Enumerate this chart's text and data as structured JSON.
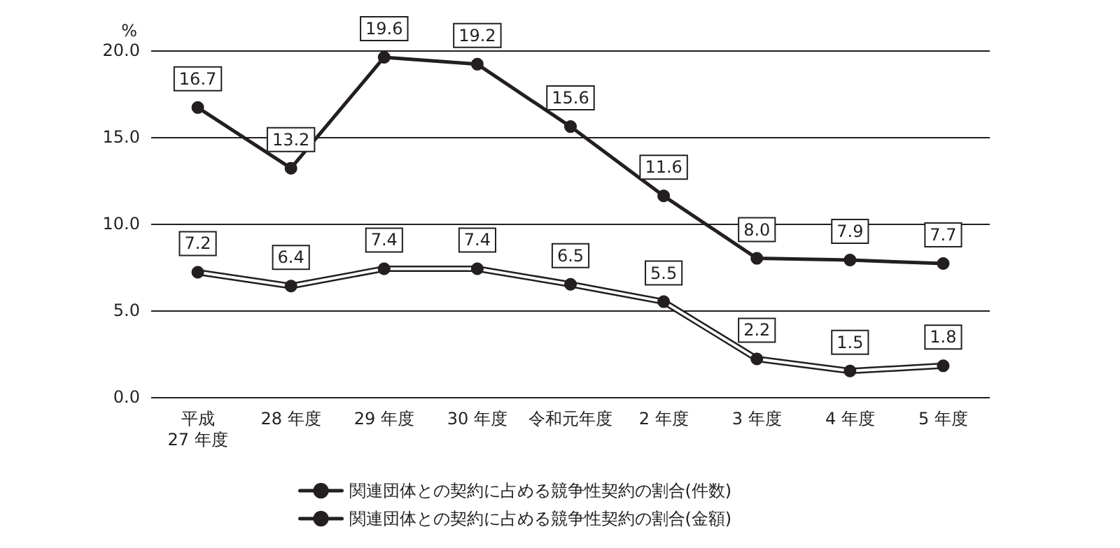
{
  "chart_data": {
    "type": "line",
    "ylabel": "%",
    "categories": [
      "平成27 年度",
      "28 年度",
      "29 年度",
      "30 年度",
      "令和元年度",
      "2 年度",
      "3 年度",
      "4 年度",
      "5 年度"
    ],
    "series": [
      {
        "name": "関連団体との契約に占める競争性契約の割合(件数)",
        "color": "#231f20",
        "values": [
          16.7,
          13.2,
          19.6,
          19.2,
          15.6,
          11.6,
          8.0,
          7.9,
          7.7
        ],
        "value_labels": [
          "16.7",
          "13.2",
          "19.6",
          "19.2",
          "15.6",
          "11.6",
          "8.0",
          "7.9",
          "7.7"
        ]
      },
      {
        "name": "関連団体との契約に占める競争性契約の割合(金額)",
        "color": "#231f20",
        "values": [
          7.2,
          6.4,
          7.4,
          7.4,
          6.5,
          5.5,
          2.2,
          1.5,
          1.8
        ],
        "value_labels": [
          "7.2",
          "6.4",
          "7.4",
          "7.4",
          "6.5",
          "5.5",
          "2.2",
          "1.5",
          "1.8"
        ]
      }
    ],
    "ylim": [
      0,
      20
    ],
    "yticks": [
      {
        "value": 0,
        "label": "0.0"
      },
      {
        "value": 5,
        "label": "5.0"
      },
      {
        "value": 10,
        "label": "10.0"
      },
      {
        "value": 15,
        "label": "15.0"
      },
      {
        "value": 20,
        "label": "20.0"
      }
    ],
    "grid": "y",
    "legend": "bottom",
    "marker": "circle",
    "line_style": "solid"
  }
}
